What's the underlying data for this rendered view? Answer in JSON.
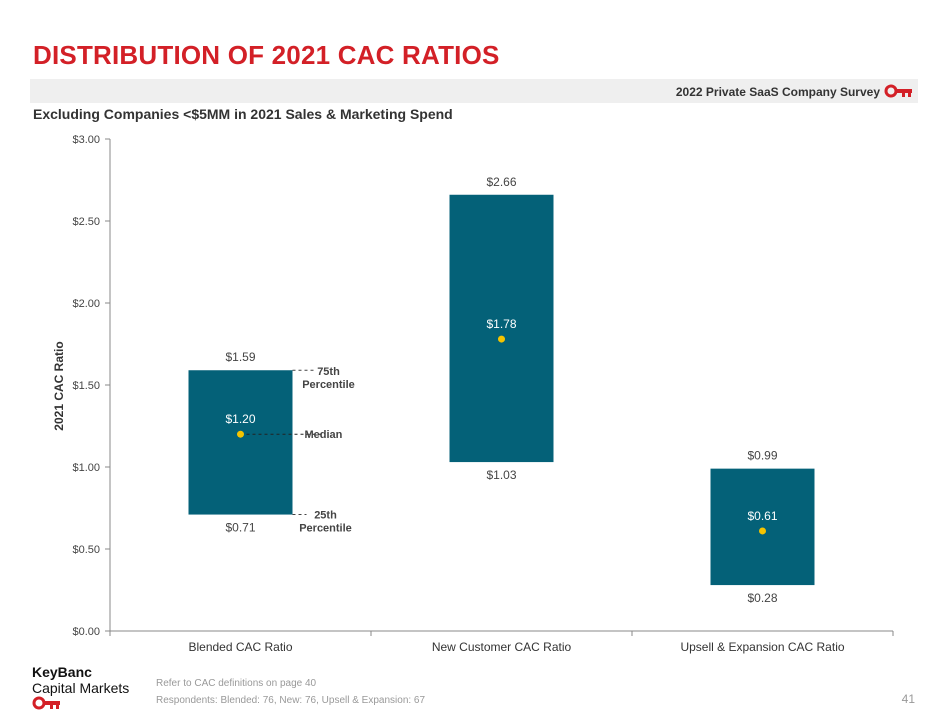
{
  "title": "DISTRIBUTION OF 2021 CAC RATIOS",
  "survey_label": "2022 Private SaaS Company Survey",
  "subtitle": "Excluding Companies <$5MM in 2021 Sales & Marketing Spend",
  "colors": {
    "title_red": "#d32027",
    "bar": "#046178",
    "median_dot": "#f5c400",
    "survey_bg": "#efefef"
  },
  "chart_data": {
    "type": "bar",
    "subtype": "floating-range",
    "ylabel": "2021 CAC Ratio",
    "ylim": [
      0,
      3.0
    ],
    "yticks": [
      "$0.00",
      "$0.50",
      "$1.00",
      "$1.50",
      "$2.00",
      "$2.50",
      "$3.00"
    ],
    "ytick_values": [
      0,
      0.5,
      1.0,
      1.5,
      2.0,
      2.5,
      3.0
    ],
    "categories": [
      "Blended CAC Ratio",
      "New Customer CAC Ratio",
      "Upsell & Expansion CAC Ratio"
    ],
    "p25": [
      0.71,
      1.03,
      0.28
    ],
    "median": [
      1.2,
      1.78,
      0.61
    ],
    "p75": [
      1.59,
      2.66,
      0.99
    ],
    "labels_p25": [
      "$0.71",
      "$1.03",
      "$0.28"
    ],
    "labels_median": [
      "$1.20",
      "$1.78",
      "$0.61"
    ],
    "labels_p75": [
      "$1.59",
      "$2.66",
      "$0.99"
    ],
    "annotations": {
      "p75_line1": "75th",
      "p75_line2": "Percentile",
      "median": "Median",
      "p25_line1": "25th",
      "p25_line2": "Percentile"
    },
    "grid": false
  },
  "footer": {
    "note1": "Refer to CAC definitions on page 40",
    "note2": "Respondents: Blended: 76, New: 76, Upsell & Expansion: 67",
    "brand_line1": "KeyBanc",
    "brand_line2": "Capital Markets",
    "page": "41"
  }
}
